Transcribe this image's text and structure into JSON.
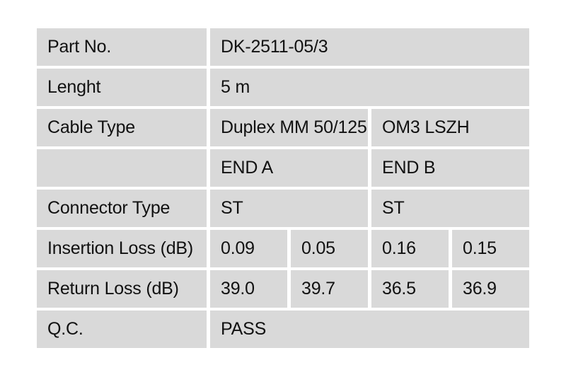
{
  "table": {
    "name": "fiber-cable-qc-report",
    "colors": {
      "cell_background": "#d9d9d9",
      "grid_gap": "#ffffff",
      "text": "#111111",
      "page_background": "#ffffff"
    },
    "rows": [
      {
        "label": "Part No.",
        "cells": [
          {
            "text": "DK-2511-05/3",
            "span": 4
          }
        ]
      },
      {
        "label": "Lenght",
        "cells": [
          {
            "text": "5 m",
            "span": 4
          }
        ]
      },
      {
        "label": "Cable Type",
        "cells": [
          {
            "text": "Duplex MM 50/125",
            "span": 2
          },
          {
            "text": "OM3 LSZH",
            "span": 2
          }
        ]
      },
      {
        "label": "",
        "cells": [
          {
            "text": "END A",
            "span": 2
          },
          {
            "text": "END B",
            "span": 2
          }
        ]
      },
      {
        "label": "Connector Type",
        "cells": [
          {
            "text": "ST",
            "span": 2
          },
          {
            "text": "ST",
            "span": 2
          }
        ]
      },
      {
        "label": "Insertion Loss (dB)",
        "cells": [
          {
            "text": "0.09",
            "span": 1
          },
          {
            "text": "0.05",
            "span": 1
          },
          {
            "text": "0.16",
            "span": 1
          },
          {
            "text": "0.15",
            "span": 1
          }
        ]
      },
      {
        "label": "Return Loss (dB)",
        "cells": [
          {
            "text": "39.0",
            "span": 1
          },
          {
            "text": "39.7",
            "span": 1
          },
          {
            "text": "36.5",
            "span": 1
          },
          {
            "text": "36.9",
            "span": 1
          }
        ]
      },
      {
        "label": "Q.C.",
        "cells": [
          {
            "text": "PASS",
            "span": 4
          }
        ]
      }
    ]
  }
}
